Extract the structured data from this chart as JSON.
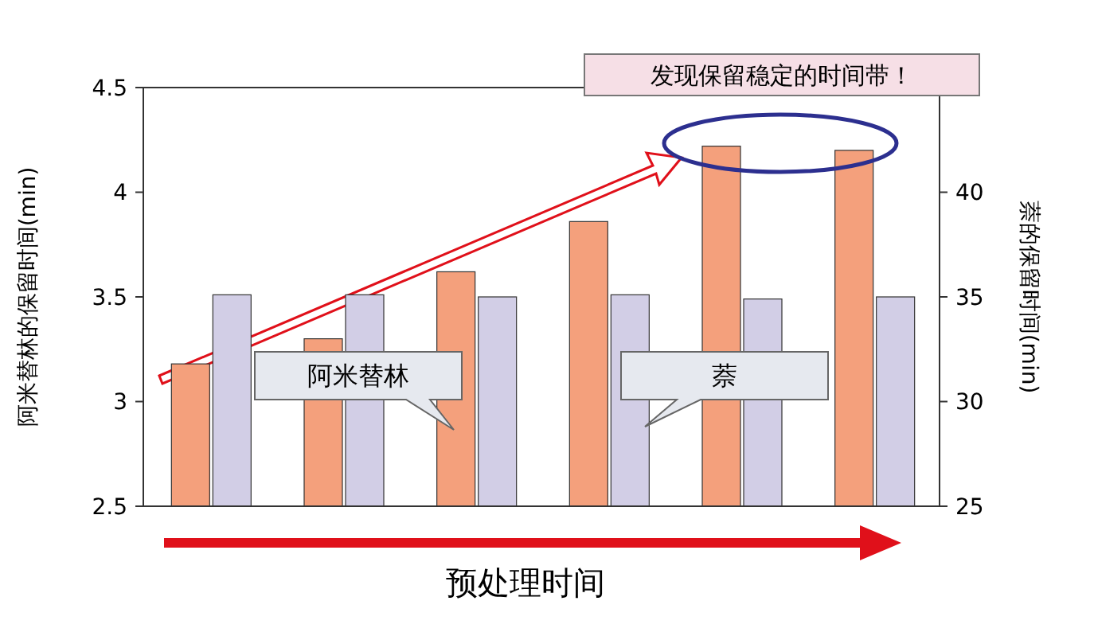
{
  "chart_data": {
    "type": "bar",
    "categories": [
      null,
      null,
      null,
      null,
      null,
      null
    ],
    "series": [
      {
        "name": "阿米替林",
        "color": "#f4a07c",
        "values": [
          3.18,
          3.3,
          3.62,
          3.86,
          4.22,
          4.2
        ]
      },
      {
        "name": "萘",
        "color": "#d2cee6",
        "values": [
          35.1,
          35.1,
          35.0,
          35.1,
          34.9,
          35.0
        ],
        "axis": "y2"
      }
    ],
    "xlabel": "预处理时间",
    "ylabel": "阿米替林的保留时间(min)",
    "y2label": "萘的保留时间(min)",
    "ylim": [
      2.5,
      4.5
    ],
    "yticks": [
      2.5,
      3,
      3.5,
      4,
      4.5
    ],
    "y2lim": [
      25,
      45
    ],
    "y2ticks": [
      25,
      30,
      35,
      40
    ],
    "annotations": [
      "发现保留稳定的时间带！"
    ]
  }
}
